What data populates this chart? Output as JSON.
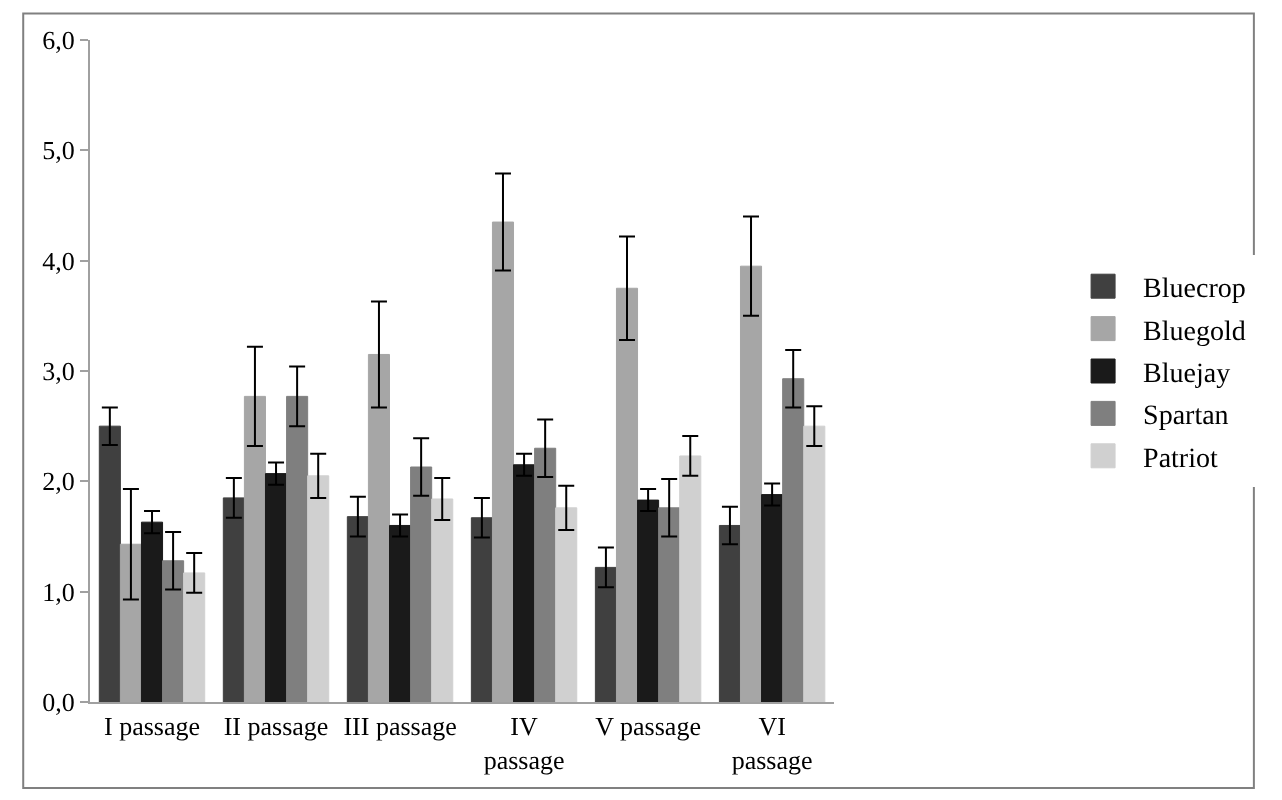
{
  "chart_data": {
    "type": "bar",
    "categories": [
      "I passage",
      "II passage",
      "III passage",
      "IV\npassage",
      "V passage",
      "VI\npassage"
    ],
    "series": [
      {
        "name": "Bluecrop",
        "color": "#404040",
        "values": [
          2.5,
          1.85,
          1.68,
          1.67,
          1.22,
          1.6
        ],
        "errors": [
          0.17,
          0.18,
          0.18,
          0.18,
          0.18,
          0.17
        ]
      },
      {
        "name": "Bluegold",
        "color": "#a6a6a6",
        "values": [
          1.43,
          2.77,
          3.15,
          4.35,
          3.75,
          3.95
        ],
        "errors": [
          0.5,
          0.45,
          0.48,
          0.44,
          0.47,
          0.45
        ]
      },
      {
        "name": "Bluejay",
        "color": "#1a1a1a",
        "values": [
          1.63,
          2.07,
          1.6,
          2.15,
          1.83,
          1.88
        ],
        "errors": [
          0.1,
          0.1,
          0.1,
          0.1,
          0.1,
          0.1
        ]
      },
      {
        "name": "Spartan",
        "color": "#7f7f7f",
        "values": [
          1.28,
          2.77,
          2.13,
          2.3,
          1.76,
          2.93
        ],
        "errors": [
          0.26,
          0.27,
          0.26,
          0.26,
          0.26,
          0.26
        ]
      },
      {
        "name": "Patriot",
        "color": "#d0d0d0",
        "values": [
          1.17,
          2.05,
          1.84,
          1.76,
          2.23,
          2.5
        ],
        "errors": [
          0.18,
          0.2,
          0.19,
          0.2,
          0.18,
          0.18
        ]
      }
    ],
    "ylim": [
      0,
      6
    ],
    "yticks": [
      {
        "value": 0,
        "label": "0,0"
      },
      {
        "value": 1,
        "label": "1,0"
      },
      {
        "value": 2,
        "label": "2,0"
      },
      {
        "value": 3,
        "label": "3,0"
      },
      {
        "value": 4,
        "label": "4,0"
      },
      {
        "value": 5,
        "label": "5,0"
      },
      {
        "value": 6,
        "label": "6,0"
      }
    ],
    "legend": "right"
  }
}
